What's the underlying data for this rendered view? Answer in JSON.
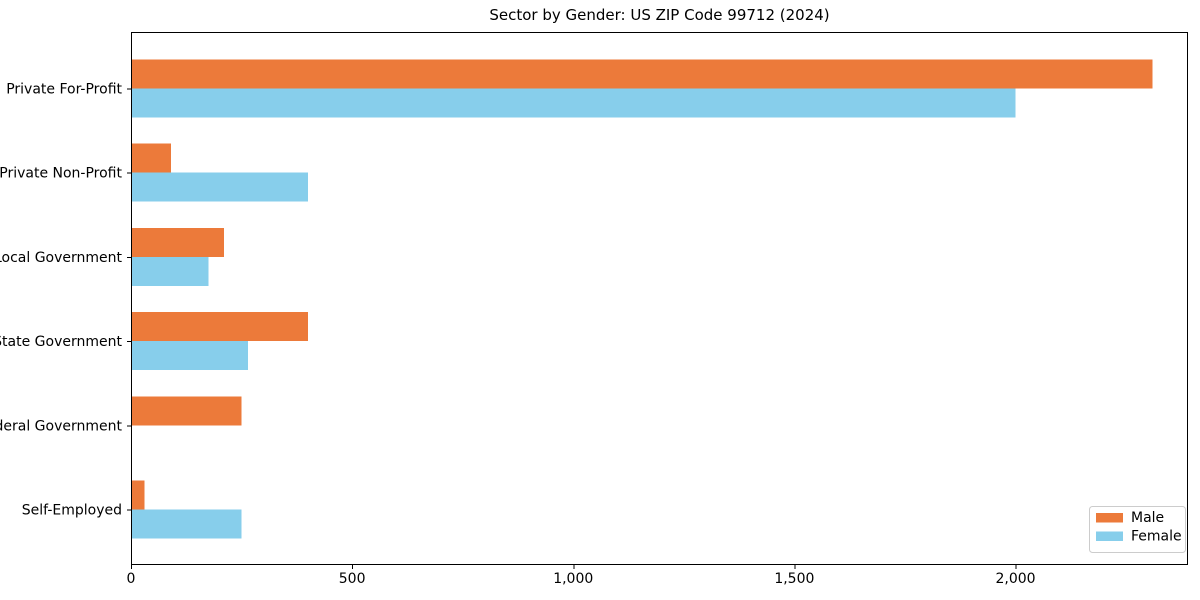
{
  "chart_data": {
    "type": "bar",
    "orientation": "horizontal",
    "title": "Sector by Gender: US ZIP Code 99712 (2024)",
    "categories": [
      "Private For-Profit",
      "Private Non-Profit",
      "Local Government",
      "State Government",
      "Federal Government",
      "Self-Employed"
    ],
    "series": [
      {
        "name": "Male",
        "color": "#EC7A3A",
        "values": [
          2310,
          90,
          210,
          400,
          250,
          30
        ]
      },
      {
        "name": "Female",
        "color": "#87CEEB",
        "values": [
          2000,
          400,
          175,
          265,
          0,
          250
        ]
      }
    ],
    "xlabel": "",
    "ylabel": "",
    "xlim": [
      0,
      2390
    ],
    "xticks": {
      "values": [
        0,
        500,
        1000,
        1500,
        2000
      ],
      "labels": [
        "0",
        "500",
        "1,000",
        "1,500",
        "2,000"
      ]
    },
    "legend": {
      "position": "lower-right",
      "entries": [
        {
          "label": "Male",
          "color": "#EC7A3A"
        },
        {
          "label": "Female",
          "color": "#87CEEB"
        }
      ]
    },
    "grid": false,
    "colors": {
      "axis": "#000000",
      "background": "#FFFFFF",
      "legend_border": "#CCCCCC"
    }
  }
}
